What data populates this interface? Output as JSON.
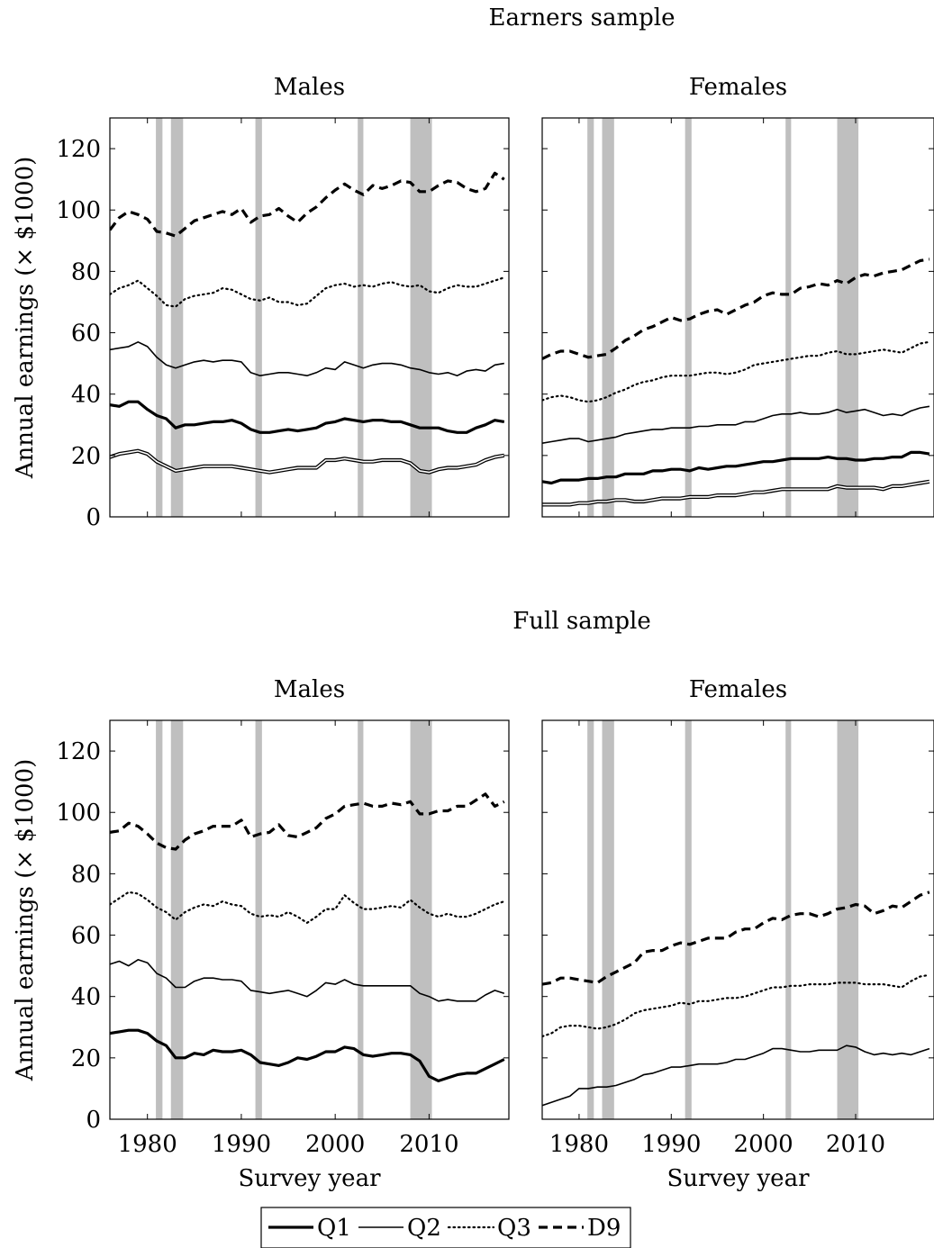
{
  "sections": [
    {
      "title": "Earners sample"
    },
    {
      "title": "Full sample"
    }
  ],
  "legend": {
    "entries": [
      {
        "label": "Q1",
        "style": "thick"
      },
      {
        "label": "Q2",
        "style": "thin"
      },
      {
        "label": "Q3",
        "style": "dotted"
      },
      {
        "label": "D9",
        "style": "dashed"
      }
    ]
  },
  "recession_bands": [
    [
      1980.9,
      1981.6
    ],
    [
      1982.5,
      1983.8
    ],
    [
      1991.5,
      1992.2
    ],
    [
      2002.4,
      2003.0
    ],
    [
      2008.0,
      2010.3
    ]
  ],
  "recession_color": "#bfbfbf",
  "chart_data": [
    {
      "type": "line",
      "section": 0,
      "title": "Males",
      "xlabel": "",
      "ylabel": "Annual earnings (× $1000)",
      "xlim": [
        1976,
        2018.5
      ],
      "ylim": [
        0,
        130
      ],
      "xticks": [
        1980,
        1990,
        2000,
        2010
      ],
      "yticks": [
        0,
        20,
        40,
        60,
        80,
        100,
        120
      ],
      "show_xticklabels": false,
      "show_yticklabels": true,
      "x": [
        1976,
        1977,
        1978,
        1979,
        1980,
        1981,
        1982,
        1983,
        1984,
        1985,
        1986,
        1987,
        1988,
        1989,
        1990,
        1991,
        1992,
        1993,
        1994,
        1995,
        1996,
        1997,
        1998,
        1999,
        2000,
        2001,
        2002,
        2003,
        2004,
        2005,
        2006,
        2007,
        2008,
        2009,
        2010,
        2011,
        2012,
        2013,
        2014,
        2015,
        2016,
        2017,
        2018
      ],
      "series": [
        {
          "name": "D9",
          "style": "dashed",
          "values": [
            93.5,
            97.5,
            99.5,
            98.5,
            97,
            93,
            92.5,
            91.5,
            94,
            96.5,
            97.5,
            98.5,
            99.5,
            98.5,
            100.5,
            96,
            98,
            98.5,
            100.5,
            98,
            96,
            99,
            101,
            104,
            106.5,
            108.5,
            106.5,
            105,
            108,
            107,
            108,
            109.5,
            109,
            106,
            106,
            108,
            109.5,
            109,
            107,
            106,
            107,
            112,
            110
          ]
        },
        {
          "name": "Q3",
          "style": "dotted",
          "values": [
            72.5,
            74.5,
            75.5,
            77,
            74.5,
            72,
            69,
            68.5,
            71,
            72,
            72.5,
            73,
            74.5,
            74,
            72.5,
            71,
            70.5,
            71.5,
            70,
            70,
            69,
            69.5,
            72,
            74.5,
            75.5,
            76,
            75,
            75.5,
            75,
            76,
            76.5,
            75.5,
            75,
            75.5,
            73.5,
            73,
            74.5,
            75.5,
            75,
            75,
            76,
            77,
            78
          ]
        },
        {
          "name": "Q2",
          "style": "thin",
          "values": [
            54.5,
            55,
            55.5,
            57,
            55.5,
            52,
            49.5,
            48.5,
            49.5,
            50.5,
            51,
            50.5,
            51,
            51,
            50.5,
            47,
            46,
            46.5,
            47,
            47,
            46.5,
            46,
            47,
            48.5,
            48,
            50.5,
            49.5,
            48.5,
            49.5,
            50,
            50,
            49.5,
            48.5,
            48,
            47,
            46.5,
            47,
            46,
            47.5,
            48,
            47.5,
            49.5,
            50
          ]
        },
        {
          "name": "Q1",
          "style": "thick",
          "values": [
            36.5,
            36,
            37.5,
            37.5,
            35,
            33,
            32,
            29,
            30,
            30,
            30.5,
            31,
            31,
            31.5,
            30.5,
            28.5,
            27.5,
            27.5,
            28,
            28.5,
            28,
            28.5,
            29,
            30.5,
            31,
            32,
            31.5,
            31,
            31.5,
            31.5,
            31,
            31,
            30,
            29,
            29,
            29,
            28,
            27.5,
            27.5,
            29,
            30,
            31.5,
            31
          ]
        },
        {
          "name": "D1",
          "style": "double",
          "values": [
            19.5,
            20.5,
            21,
            21.5,
            20.5,
            18,
            16.5,
            15,
            15.5,
            16,
            16.5,
            16.5,
            16.5,
            16.5,
            16,
            15.5,
            15,
            14.5,
            15,
            15.5,
            16,
            16,
            16,
            18.5,
            18.5,
            19,
            18.5,
            18,
            18,
            18.5,
            18.5,
            18.5,
            17.5,
            15,
            14.5,
            15.5,
            16,
            16,
            16.5,
            17,
            18.5,
            19.5,
            20
          ]
        }
      ]
    },
    {
      "type": "line",
      "section": 0,
      "title": "Females",
      "xlabel": "",
      "ylabel": "",
      "xlim": [
        1976,
        2018.5
      ],
      "ylim": [
        0,
        130
      ],
      "xticks": [
        1980,
        1990,
        2000,
        2010
      ],
      "yticks": [
        0,
        20,
        40,
        60,
        80,
        100,
        120
      ],
      "show_xticklabels": false,
      "show_yticklabels": false,
      "x": [
        1976,
        1977,
        1978,
        1979,
        1980,
        1981,
        1982,
        1983,
        1984,
        1985,
        1986,
        1987,
        1988,
        1989,
        1990,
        1991,
        1992,
        1993,
        1994,
        1995,
        1996,
        1997,
        1998,
        1999,
        2000,
        2001,
        2002,
        2003,
        2004,
        2005,
        2006,
        2007,
        2008,
        2009,
        2010,
        2011,
        2012,
        2013,
        2014,
        2015,
        2016,
        2017,
        2018
      ],
      "series": [
        {
          "name": "D9",
          "style": "dashed",
          "values": [
            51.5,
            53,
            54,
            54,
            53,
            52,
            52.5,
            53,
            55,
            57.5,
            59,
            61,
            62,
            63.5,
            65,
            64,
            64.5,
            66,
            67,
            67.5,
            66,
            67.5,
            69,
            70,
            72,
            73,
            72.5,
            72.5,
            74.5,
            75,
            76,
            75.5,
            77,
            76,
            78,
            79,
            78.5,
            79.5,
            80,
            80.5,
            82,
            83.5,
            84
          ]
        },
        {
          "name": "Q3",
          "style": "dotted",
          "values": [
            38,
            39,
            39.5,
            39,
            38,
            37.5,
            38,
            39,
            40.5,
            41.5,
            43,
            44,
            44.5,
            45.5,
            46,
            46,
            46,
            46.5,
            47,
            47,
            46.5,
            47,
            48,
            49.5,
            50,
            50.5,
            51,
            51.5,
            52,
            52.5,
            52.5,
            53.5,
            54,
            53,
            53,
            53.5,
            54,
            54.5,
            54,
            53.5,
            55,
            56.5,
            57
          ]
        },
        {
          "name": "Q2",
          "style": "thin",
          "values": [
            24,
            24.5,
            25,
            25.5,
            25.5,
            24.5,
            25,
            25.5,
            26,
            27,
            27.5,
            28,
            28.5,
            28.5,
            29,
            29,
            29,
            29.5,
            29.5,
            30,
            30,
            30,
            31,
            31,
            32,
            33,
            33.5,
            33.5,
            34,
            33.5,
            33.5,
            34,
            35,
            34,
            34.5,
            35,
            34,
            33,
            33.5,
            33,
            34.5,
            35.5,
            36
          ]
        },
        {
          "name": "Q1",
          "style": "thick",
          "values": [
            11.5,
            11,
            12,
            12,
            12,
            12.5,
            12.5,
            13,
            13,
            14,
            14,
            14,
            15,
            15,
            15.5,
            15.5,
            15,
            16,
            15.5,
            16,
            16.5,
            16.5,
            17,
            17.5,
            18,
            18,
            18.5,
            19,
            19,
            19,
            19,
            19.5,
            19,
            19,
            18.5,
            18.5,
            19,
            19,
            19.5,
            19.5,
            21,
            21,
            20.5
          ]
        },
        {
          "name": "D1",
          "style": "double",
          "values": [
            4,
            4,
            4,
            4,
            4.5,
            4.5,
            5,
            5,
            5.5,
            5.5,
            5,
            5,
            5.5,
            6,
            6,
            6,
            6.5,
            6.5,
            6.5,
            7,
            7,
            7,
            7.5,
            8,
            8,
            8.5,
            9,
            9,
            9,
            9,
            9,
            9,
            10,
            9.5,
            9.5,
            9.5,
            9.5,
            9,
            10,
            10,
            10.5,
            11,
            11.5
          ]
        }
      ]
    },
    {
      "type": "line",
      "section": 1,
      "title": "Males",
      "xlabel": "Survey year",
      "ylabel": "Annual earnings (× $1000)",
      "xlim": [
        1976,
        2018.5
      ],
      "ylim": [
        0,
        130
      ],
      "xticks": [
        1980,
        1990,
        2000,
        2010
      ],
      "yticks": [
        0,
        20,
        40,
        60,
        80,
        100,
        120
      ],
      "show_xticklabels": true,
      "show_yticklabels": true,
      "x": [
        1976,
        1977,
        1978,
        1979,
        1980,
        1981,
        1982,
        1983,
        1984,
        1985,
        1986,
        1987,
        1988,
        1989,
        1990,
        1991,
        1992,
        1993,
        1994,
        1995,
        1996,
        1997,
        1998,
        1999,
        2000,
        2001,
        2002,
        2003,
        2004,
        2005,
        2006,
        2007,
        2008,
        2009,
        2010,
        2011,
        2012,
        2013,
        2014,
        2015,
        2016,
        2017,
        2018
      ],
      "series": [
        {
          "name": "D9",
          "style": "dashed",
          "values": [
            93.5,
            94,
            96.5,
            95.5,
            93,
            90,
            88.5,
            88,
            91,
            93,
            94,
            95.5,
            95.5,
            95.5,
            97.5,
            92,
            93,
            93.5,
            96,
            92.5,
            92,
            93.5,
            95,
            98,
            99.5,
            102,
            102.5,
            103,
            102,
            102,
            103,
            102.5,
            103.5,
            99.5,
            99.5,
            100.5,
            100.5,
            102,
            102,
            104,
            106,
            102,
            103.5
          ]
        },
        {
          "name": "Q3",
          "style": "dotted",
          "values": [
            70,
            72,
            74,
            73.5,
            71.5,
            69,
            67.5,
            65,
            67.5,
            69,
            70,
            69.5,
            71,
            70,
            69.5,
            67,
            66,
            66.5,
            66,
            67.5,
            66,
            64,
            66,
            68.5,
            68.5,
            73,
            70.5,
            68.5,
            68.5,
            69,
            69.5,
            69,
            71.5,
            69,
            67,
            66,
            67,
            66,
            66,
            67,
            68.5,
            70,
            71
          ]
        },
        {
          "name": "Q2",
          "style": "thin",
          "values": [
            50.5,
            51.5,
            50,
            52,
            51,
            47.5,
            46,
            43,
            43,
            45,
            46,
            46,
            45.5,
            45.5,
            45,
            42,
            41.5,
            41,
            41.5,
            42,
            41,
            40,
            42,
            44.5,
            44,
            45.5,
            44,
            43.5,
            43.5,
            43.5,
            43.5,
            43.5,
            43.5,
            41,
            40,
            38.5,
            39,
            38.5,
            38.5,
            38.5,
            40.5,
            42,
            41
          ]
        },
        {
          "name": "Q1",
          "style": "thick",
          "values": [
            28,
            28.5,
            29,
            29,
            28,
            25.5,
            24,
            20,
            20,
            21.5,
            21,
            22.5,
            22,
            22,
            22.5,
            21,
            18.5,
            18,
            17.5,
            18.5,
            20,
            19.5,
            20.5,
            22,
            22,
            23.5,
            23,
            21,
            20.5,
            21,
            21.5,
            21.5,
            21,
            19,
            14,
            12.5,
            13.5,
            14.5,
            15,
            15,
            16.5,
            18,
            19.5
          ]
        }
      ]
    },
    {
      "type": "line",
      "section": 1,
      "title": "Females",
      "xlabel": "Survey year",
      "ylabel": "",
      "xlim": [
        1976,
        2018.5
      ],
      "ylim": [
        0,
        130
      ],
      "xticks": [
        1980,
        1990,
        2000,
        2010
      ],
      "yticks": [
        0,
        20,
        40,
        60,
        80,
        100,
        120
      ],
      "show_xticklabels": true,
      "show_yticklabels": false,
      "x": [
        1976,
        1977,
        1978,
        1979,
        1980,
        1981,
        1982,
        1983,
        1984,
        1985,
        1986,
        1987,
        1988,
        1989,
        1990,
        1991,
        1992,
        1993,
        1994,
        1995,
        1996,
        1997,
        1998,
        1999,
        2000,
        2001,
        2002,
        2003,
        2004,
        2005,
        2006,
        2007,
        2008,
        2009,
        2010,
        2011,
        2012,
        2013,
        2014,
        2015,
        2016,
        2017,
        2018
      ],
      "series": [
        {
          "name": "D9",
          "style": "dashed",
          "values": [
            44,
            44.5,
            46,
            46,
            45.5,
            45,
            44.5,
            46.5,
            48,
            49.5,
            51,
            54.5,
            55,
            55,
            56.5,
            57.5,
            57,
            58,
            59,
            59,
            59,
            61,
            62,
            62,
            64,
            65.5,
            65,
            66.5,
            67,
            67,
            66,
            67,
            68.5,
            69,
            70,
            69.5,
            67,
            68,
            69.5,
            69,
            71,
            73,
            74
          ]
        },
        {
          "name": "Q3",
          "style": "dotted",
          "values": [
            27,
            28,
            30,
            30.5,
            30.5,
            30,
            29.5,
            30,
            31,
            32.5,
            34.5,
            35.5,
            36,
            36.5,
            37,
            38,
            37.5,
            38.5,
            38.5,
            39,
            39.5,
            39.5,
            40,
            41,
            42,
            43,
            43,
            43.5,
            43.5,
            44,
            44,
            44,
            44.5,
            44.5,
            44.5,
            44,
            44,
            44,
            43.5,
            43,
            45,
            46.5,
            47
          ]
        },
        {
          "name": "Q2",
          "style": "thin",
          "values": [
            4.5,
            5.5,
            6.5,
            7.5,
            10,
            10,
            10.5,
            10.5,
            11,
            12,
            13,
            14.5,
            15,
            16,
            17,
            17,
            17.5,
            18,
            18,
            18,
            18.5,
            19.5,
            19.5,
            20.5,
            21.5,
            23,
            23,
            22.5,
            22,
            22,
            22.5,
            22.5,
            22.5,
            24,
            23.5,
            22,
            21,
            21.5,
            21,
            21.5,
            21,
            22,
            23
          ]
        }
      ]
    }
  ]
}
